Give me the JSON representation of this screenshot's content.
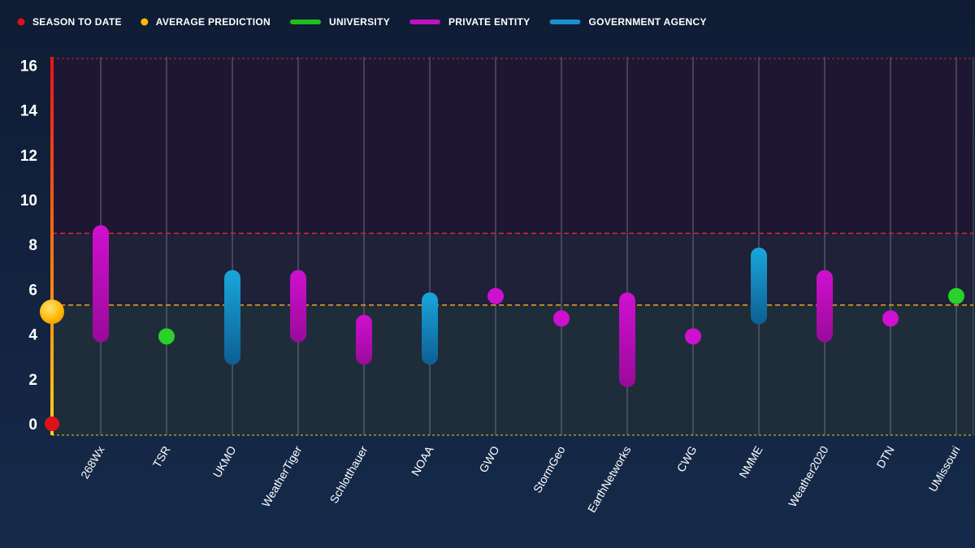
{
  "chart_data": {
    "type": "range",
    "legend": [
      {
        "label": "SEASON TO DATE",
        "marker": "dot",
        "color": "#e0101a"
      },
      {
        "label": "AVERAGE PREDICTION",
        "marker": "dot",
        "color": "#ffb800"
      },
      {
        "label": "UNIVERSITY",
        "marker": "bar",
        "color": "#1fbf1f"
      },
      {
        "label": "PRIVATE ENTITY",
        "marker": "bar",
        "color": "#c010c0"
      },
      {
        "label": "GOVERNMENT AGENCY",
        "marker": "bar",
        "color": "#1a8fd0"
      }
    ],
    "ylim": [
      0,
      16.5
    ],
    "yticks": [
      0,
      2,
      4,
      6,
      8,
      10,
      12,
      14,
      16
    ],
    "season_to_date": 0,
    "average_prediction": 5,
    "reference_lines": [
      5.3,
      8.5,
      16.3
    ],
    "categories": [
      "268Wx",
      "TSR",
      "UKMO",
      "WeatherTiger",
      "Schlotthauer",
      "NOAA",
      "GWO",
      "StormGeo",
      "EarthNetworks",
      "CWG",
      "NMME",
      "Weather2020",
      "DTN",
      "UMissouri"
    ],
    "forecasts": [
      {
        "source": "268Wx",
        "group": "PRIVATE ENTITY",
        "low": 4,
        "high": 8.5
      },
      {
        "source": "TSR",
        "group": "UNIVERSITY",
        "low": 3.9,
        "high": 3.9
      },
      {
        "source": "UKMO",
        "group": "GOVERNMENT AGENCY",
        "low": 3,
        "high": 6.5
      },
      {
        "source": "WeatherTiger",
        "group": "PRIVATE ENTITY",
        "low": 4,
        "high": 6.5
      },
      {
        "source": "Schlotthauer",
        "group": "PRIVATE ENTITY",
        "low": 3,
        "high": 4.5
      },
      {
        "source": "NOAA",
        "group": "GOVERNMENT AGENCY",
        "low": 3,
        "high": 5.5
      },
      {
        "source": "GWO",
        "group": "PRIVATE ENTITY",
        "low": 5.7,
        "high": 5.7
      },
      {
        "source": "StormGeo",
        "group": "PRIVATE ENTITY",
        "low": 4.7,
        "high": 4.7
      },
      {
        "source": "EarthNetworks",
        "group": "PRIVATE ENTITY",
        "low": 2,
        "high": 5.5
      },
      {
        "source": "CWG",
        "group": "PRIVATE ENTITY",
        "low": 3.9,
        "high": 3.9
      },
      {
        "source": "NMME",
        "group": "GOVERNMENT AGENCY",
        "low": 4.8,
        "high": 7.5
      },
      {
        "source": "Weather2020",
        "group": "PRIVATE ENTITY",
        "low": 4,
        "high": 6.5
      },
      {
        "source": "DTN",
        "group": "PRIVATE ENTITY",
        "low": 4.7,
        "high": 4.7
      },
      {
        "source": "UMissouri",
        "group": "UNIVERSITY",
        "low": 5.7,
        "high": 5.7
      }
    ],
    "group_colors": {
      "UNIVERSITY": [
        "#2ad12a",
        "#17a517"
      ],
      "PRIVATE ENTITY": [
        "#d010d0",
        "#9a0a9a"
      ],
      "GOVERNMENT AGENCY": [
        "#1aa6dc",
        "#0c5f93"
      ]
    },
    "grid": true,
    "legend_position": "top-left"
  }
}
